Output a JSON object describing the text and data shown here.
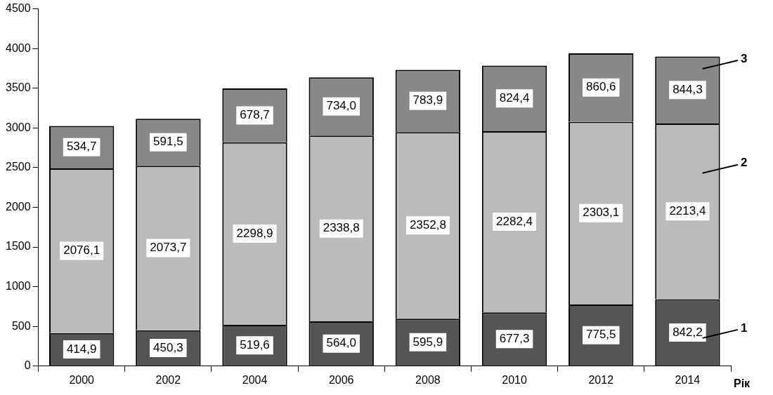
{
  "chart_data": {
    "type": "bar",
    "stacked": true,
    "xlabel": "Рік",
    "categories": [
      "2000",
      "2002",
      "2004",
      "2006",
      "2008",
      "2010",
      "2012",
      "2014"
    ],
    "series": [
      {
        "name": "1",
        "color": "#555555",
        "values": [
          414.9,
          450.3,
          519.6,
          564.0,
          595.9,
          677.3,
          775.5,
          842.2
        ],
        "value_labels": [
          "414,9",
          "450,3",
          "519,6",
          "564,0",
          "595,9",
          "677,3",
          "775,5",
          "842,2"
        ]
      },
      {
        "name": "2",
        "color": "#bbbbbb",
        "values": [
          2076.1,
          2073.7,
          2298.9,
          2338.8,
          2352.8,
          2282.4,
          2303.1,
          2213.4
        ],
        "value_labels": [
          "2076,1",
          "2073,7",
          "2298,9",
          "2338,8",
          "2352,8",
          "2282,4",
          "2303,1",
          "2213,4"
        ]
      },
      {
        "name": "3",
        "color": "#888888",
        "values": [
          534.7,
          591.5,
          678.7,
          734.0,
          783.9,
          824.4,
          860.6,
          844.3
        ],
        "value_labels": [
          "534,7",
          "591,5",
          "678,7",
          "734,0",
          "783,9",
          "824,4",
          "860,6",
          "844,3"
        ]
      }
    ],
    "ylim": [
      0,
      4500
    ],
    "yticks": [
      0,
      500,
      1000,
      1500,
      2000,
      2500,
      3000,
      3500,
      4000,
      4500
    ],
    "grid": false,
    "legend": false
  }
}
